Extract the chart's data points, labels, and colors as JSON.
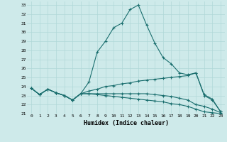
{
  "xlabel": "Humidex (Indice chaleur)",
  "bg_color": "#ceeaea",
  "line_color": "#1a6e6e",
  "grid_color": "#b0d8d8",
  "xlim": [
    -0.5,
    23.5
  ],
  "ylim": [
    21,
    33.4
  ],
  "yticks": [
    21,
    22,
    23,
    24,
    25,
    26,
    27,
    28,
    29,
    30,
    31,
    32,
    33
  ],
  "xticks": [
    0,
    1,
    2,
    3,
    4,
    5,
    6,
    7,
    8,
    9,
    10,
    11,
    12,
    13,
    14,
    15,
    16,
    17,
    18,
    19,
    20,
    21,
    22,
    23
  ],
  "s1": [
    23.8,
    23.1,
    23.7,
    23.3,
    23.0,
    22.5,
    23.2,
    24.5,
    27.8,
    29.0,
    30.5,
    31.0,
    32.5,
    33.0,
    30.8,
    28.8,
    27.2,
    26.5,
    25.5,
    25.3,
    25.5,
    23.0,
    22.5,
    21.2
  ],
  "s2": [
    23.8,
    23.1,
    23.7,
    23.3,
    23.0,
    22.5,
    23.2,
    23.5,
    23.7,
    24.0,
    24.1,
    24.3,
    24.4,
    24.6,
    24.7,
    24.8,
    24.9,
    25.0,
    25.1,
    25.2,
    25.5,
    23.1,
    22.6,
    21.2
  ],
  "s3": [
    23.8,
    23.1,
    23.7,
    23.3,
    23.0,
    22.5,
    23.2,
    23.2,
    23.2,
    23.2,
    23.2,
    23.2,
    23.2,
    23.2,
    23.2,
    23.1,
    23.0,
    22.9,
    22.7,
    22.5,
    22.0,
    21.8,
    21.5,
    21.1
  ],
  "s4": [
    23.8,
    23.1,
    23.7,
    23.3,
    23.0,
    22.5,
    23.2,
    23.2,
    23.1,
    23.0,
    22.9,
    22.8,
    22.7,
    22.6,
    22.5,
    22.4,
    22.3,
    22.1,
    22.0,
    21.8,
    21.5,
    21.2,
    21.1,
    21.0
  ]
}
